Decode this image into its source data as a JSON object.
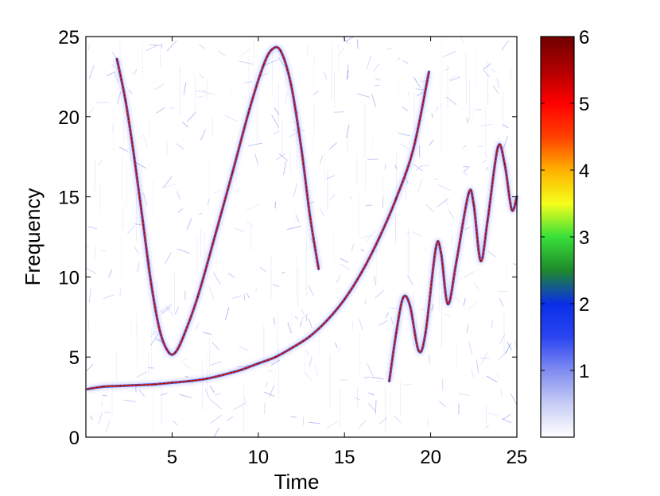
{
  "chart_data": {
    "type": "heatmap",
    "title": "",
    "xlabel": "Time",
    "ylabel": "Frequency",
    "xlim": [
      0,
      25
    ],
    "ylim": [
      0,
      25
    ],
    "xticks": [
      5,
      10,
      15,
      20,
      25
    ],
    "yticks": [
      0,
      5,
      10,
      15,
      20,
      25
    ],
    "grid": false,
    "colorbar": {
      "range": [
        0,
        6
      ],
      "ticks": [
        1,
        2,
        3,
        4,
        5,
        6
      ],
      "colormap": [
        "#ffffff",
        "#c8cdf5",
        "#7f8cf0",
        "#2a45f0",
        "#0a2ee8",
        "#1e8a2a",
        "#39e03a",
        "#f5ff1a",
        "#ffb000",
        "#ff4000",
        "#ff0000",
        "#b00000",
        "#700000"
      ]
    },
    "series": [
      {
        "name": "",
        "points": [
          [
            0.1,
            3.0
          ],
          [
            1,
            3.15
          ],
          [
            2,
            3.2
          ],
          [
            3,
            3.25
          ],
          [
            4,
            3.3
          ],
          [
            5,
            3.4
          ],
          [
            6,
            3.5
          ],
          [
            7,
            3.65
          ],
          [
            8,
            3.9
          ],
          [
            9,
            4.2
          ],
          [
            10,
            4.6
          ],
          [
            11,
            5.0
          ],
          [
            12,
            5.6
          ],
          [
            13,
            6.3
          ],
          [
            14,
            7.3
          ],
          [
            15,
            8.6
          ],
          [
            16,
            10.3
          ],
          [
            17,
            12.4
          ],
          [
            18,
            14.9
          ],
          [
            19,
            18.0
          ],
          [
            19.9,
            22.8
          ]
        ]
      },
      {
        "name": "",
        "points": [
          [
            1.8,
            23.6
          ],
          [
            2.3,
            21.0
          ],
          [
            2.8,
            17.5
          ],
          [
            3.3,
            13.5
          ],
          [
            3.8,
            9.5
          ],
          [
            4.3,
            6.6
          ],
          [
            4.8,
            5.3
          ],
          [
            5.2,
            5.3
          ],
          [
            5.7,
            6.4
          ],
          [
            6.5,
            8.8
          ],
          [
            7.5,
            12.6
          ],
          [
            8.5,
            16.5
          ],
          [
            9.5,
            20.5
          ],
          [
            10.3,
            23.2
          ],
          [
            10.8,
            24.2
          ],
          [
            11.3,
            24.1
          ],
          [
            11.9,
            22.0
          ],
          [
            12.5,
            18.0
          ],
          [
            13.0,
            13.8
          ],
          [
            13.5,
            10.5
          ]
        ]
      },
      {
        "name": "",
        "points": [
          [
            17.6,
            3.5
          ],
          [
            18.0,
            6.5
          ],
          [
            18.4,
            8.7
          ],
          [
            18.8,
            8.2
          ],
          [
            19.3,
            5.4
          ],
          [
            19.7,
            6.5
          ],
          [
            20.3,
            11.8
          ],
          [
            20.6,
            11.5
          ],
          [
            21.0,
            8.3
          ],
          [
            21.5,
            11.0
          ],
          [
            22.2,
            15.2
          ],
          [
            22.5,
            14.5
          ],
          [
            22.9,
            11.0
          ],
          [
            23.3,
            13.5
          ],
          [
            23.9,
            18.1
          ],
          [
            24.3,
            17.0
          ],
          [
            24.7,
            14.2
          ],
          [
            25.0,
            15.0
          ]
        ]
      }
    ]
  }
}
